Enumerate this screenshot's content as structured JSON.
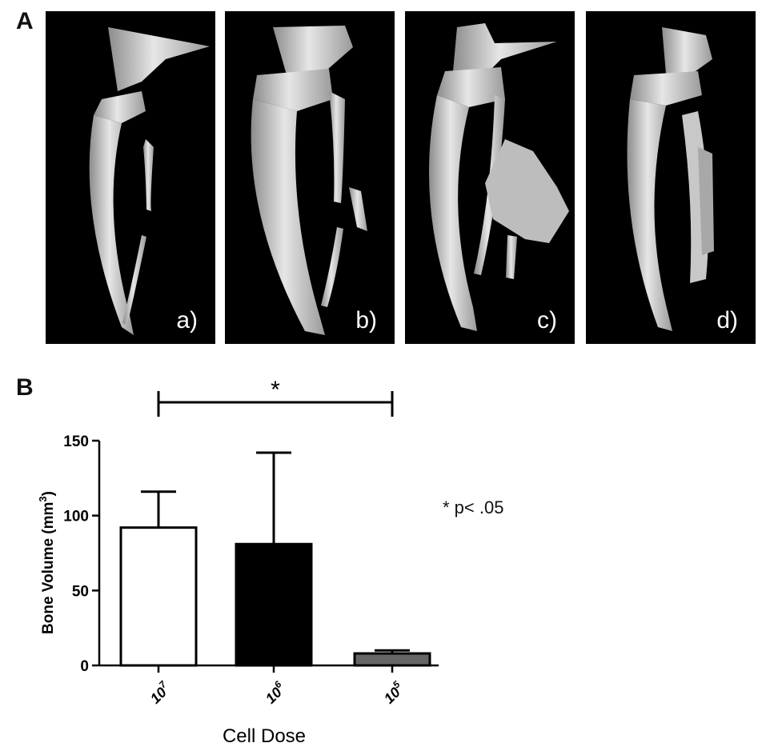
{
  "panels": {
    "top_label": "A",
    "bottom_label": "B",
    "images": [
      {
        "label": "a)"
      },
      {
        "label": "b)"
      },
      {
        "label": "c)"
      },
      {
        "label": "d)"
      }
    ]
  },
  "chart_data": {
    "type": "bar",
    "categories": [
      "10^7",
      "10^6",
      "10^5"
    ],
    "category_base": "10",
    "category_exponents": [
      "7",
      "6",
      "5"
    ],
    "values": [
      92,
      81,
      8
    ],
    "error_upper": [
      116,
      142,
      10
    ],
    "bar_colors": [
      "#ffffff",
      "#000000",
      "#666666"
    ],
    "xlabel": "Cell Dose",
    "ylabel_main": "Bone Volume (mm",
    "ylabel_sup": "3",
    "ylabel_close": ")",
    "yticks": [
      0,
      50,
      100,
      150
    ],
    "ylim": [
      0,
      150
    ],
    "significance": {
      "from": 0,
      "to": 2,
      "marker": "*"
    },
    "note": "* p< .05"
  }
}
